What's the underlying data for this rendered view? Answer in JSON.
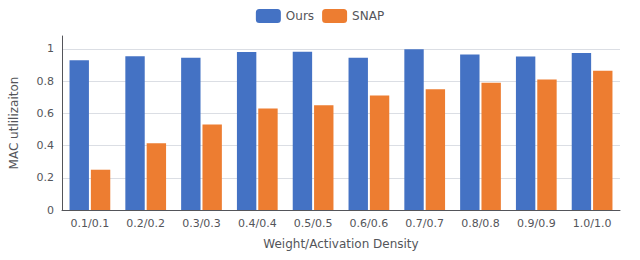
{
  "chart_data": {
    "type": "bar",
    "categories": [
      "0.1/0.1",
      "0.2/0.2",
      "0.3/0.3",
      "0.4/0.4",
      "0.5/0.5",
      "0.6/0.6",
      "0.7/0.7",
      "0.8/0.8",
      "0.9/0.9",
      "1.0/1.0"
    ],
    "series": [
      {
        "name": "Ours",
        "color": "#4472C4",
        "values": [
          0.93,
          0.955,
          0.945,
          0.98,
          0.983,
          0.945,
          0.998,
          0.965,
          0.952,
          0.975
        ]
      },
      {
        "name": "SNAP",
        "color": "#ED7D31",
        "values": [
          0.25,
          0.415,
          0.53,
          0.63,
          0.65,
          0.71,
          0.75,
          0.79,
          0.81,
          0.865
        ]
      }
    ],
    "xlabel": "Weight/Activation Density",
    "ylabel": "MAC utlilizaiton",
    "ylim": [
      0,
      1.08
    ],
    "yticks": [
      0,
      0.2,
      0.4,
      0.6,
      0.8,
      1
    ],
    "grid": true,
    "legend": "top"
  }
}
